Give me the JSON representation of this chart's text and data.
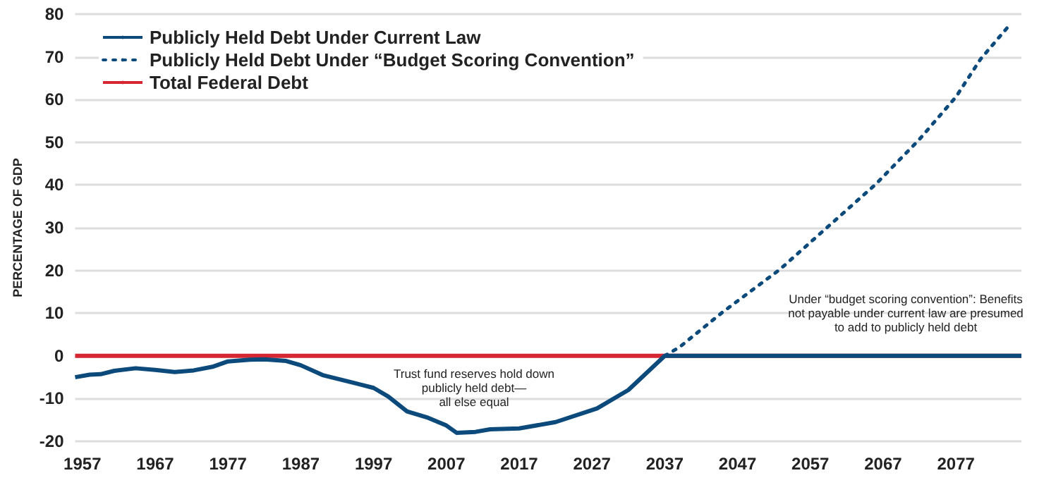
{
  "chart_data": {
    "type": "line",
    "ylabel": "PERCENTAGE OF GDP",
    "xlim": [
      1956,
      2086
    ],
    "xticks": [
      1957,
      1967,
      1977,
      1987,
      1997,
      2007,
      2017,
      2027,
      2037,
      2047,
      2057,
      2067,
      2077
    ],
    "ylim": [
      -20,
      80
    ],
    "yticks": [
      -20,
      -10,
      0,
      10,
      20,
      30,
      40,
      50,
      60,
      70,
      80
    ],
    "grid": "y",
    "legend": "top left",
    "marker": "none",
    "series": [
      {
        "name": "Total Federal Debt",
        "color": "#d62631",
        "line_style": "solid",
        "x": [
          1956,
          2086
        ],
        "values": [
          0,
          0
        ]
      },
      {
        "name": "Publicly Held Debt Under Current Law",
        "color": "#0d4a7c",
        "line_style": "solid",
        "x": [
          1956,
          1958,
          1959.5,
          1961.4,
          1964.3,
          1967,
          1969.7,
          1972.3,
          1975,
          1977,
          1980,
          1982,
          1985,
          1987,
          1990,
          1994,
          1997,
          1999,
          2001.6,
          2004.5,
          2007,
          2008.4,
          2011,
          2013,
          2017,
          2022,
          2027.7,
          2032,
          2037,
          2086
        ],
        "values": [
          -5,
          -4.4,
          -4.3,
          -3.5,
          -2.9,
          -3.3,
          -3.8,
          -3.4,
          -2.5,
          -1.3,
          -0.9,
          -0.8,
          -1.2,
          -2.2,
          -4.5,
          -6.2,
          -7.5,
          -9.5,
          -13,
          -14.5,
          -16.3,
          -18,
          -17.8,
          -17.2,
          -17,
          -15.5,
          -12.3,
          -8,
          0,
          0
        ]
      },
      {
        "name": "Publicly Held Debt Under “Budget Scoring Convention”",
        "color": "#0d4a7c",
        "line_style": "dotted",
        "x": [
          2037,
          2039,
          2045,
          2052.8,
          2059,
          2066,
          2072,
          2077,
          2080.4,
          2084
        ],
        "values": [
          0,
          2,
          10.3,
          20.2,
          29.6,
          40.2,
          50.7,
          60.6,
          69.5,
          76.7
        ]
      }
    ],
    "annotations": [
      "Trust fund reserves hold down\npublicly held debt—\nall else equal",
      "Under “budget scoring convention”: Benefits\nnot payable under current law are presumed\nto add to publicly held debt"
    ]
  }
}
